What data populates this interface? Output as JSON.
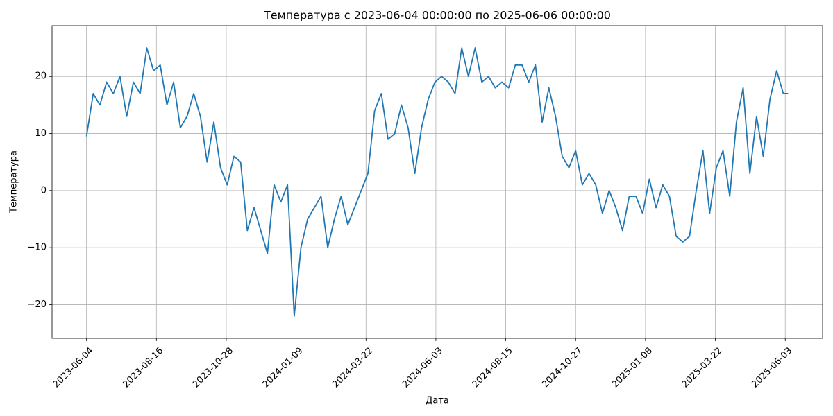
{
  "chart_data": {
    "type": "line",
    "title": "Температура с 2023-06-04 00:00:00 по 2025-06-06 00:00:00",
    "x_label": "Дата",
    "y_label": "Температура",
    "x": [
      "2023-06-04",
      "2023-06-11",
      "2023-06-18",
      "2023-06-25",
      "2023-07-02",
      "2023-07-09",
      "2023-07-16",
      "2023-07-23",
      "2023-07-30",
      "2023-08-06",
      "2023-08-13",
      "2023-08-20",
      "2023-08-27",
      "2023-09-03",
      "2023-09-10",
      "2023-09-17",
      "2023-09-24",
      "2023-10-01",
      "2023-10-08",
      "2023-10-15",
      "2023-10-22",
      "2023-10-29",
      "2023-11-05",
      "2023-11-12",
      "2023-11-19",
      "2023-11-26",
      "2023-12-03",
      "2023-12-10",
      "2023-12-17",
      "2023-12-24",
      "2023-12-31",
      "2024-01-07",
      "2024-01-14",
      "2024-01-21",
      "2024-01-28",
      "2024-02-04",
      "2024-02-11",
      "2024-02-18",
      "2024-02-25",
      "2024-03-03",
      "2024-03-10",
      "2024-03-17",
      "2024-03-24",
      "2024-03-31",
      "2024-04-07",
      "2024-04-14",
      "2024-04-21",
      "2024-04-28",
      "2024-05-05",
      "2024-05-12",
      "2024-05-19",
      "2024-05-26",
      "2024-06-02",
      "2024-06-09",
      "2024-06-16",
      "2024-06-23",
      "2024-06-30",
      "2024-07-07",
      "2024-07-14",
      "2024-07-21",
      "2024-07-28",
      "2024-08-04",
      "2024-08-11",
      "2024-08-18",
      "2024-08-25",
      "2024-09-01",
      "2024-09-08",
      "2024-09-15",
      "2024-09-22",
      "2024-09-29",
      "2024-10-06",
      "2024-10-13",
      "2024-10-20",
      "2024-10-27",
      "2024-11-03",
      "2024-11-10",
      "2024-11-17",
      "2024-11-24",
      "2024-12-01",
      "2024-12-08",
      "2024-12-15",
      "2024-12-22",
      "2024-12-29",
      "2025-01-05",
      "2025-01-12",
      "2025-01-19",
      "2025-01-26",
      "2025-02-02",
      "2025-02-09",
      "2025-02-16",
      "2025-02-23",
      "2025-03-02",
      "2025-03-09",
      "2025-03-16",
      "2025-03-23",
      "2025-03-30",
      "2025-04-06",
      "2025-04-13",
      "2025-04-20",
      "2025-04-27",
      "2025-05-04",
      "2025-05-11",
      "2025-05-18",
      "2025-05-25",
      "2025-06-01",
      "2025-06-06"
    ],
    "values": [
      9.5,
      17,
      15,
      19,
      17,
      20,
      13,
      19,
      17,
      25,
      21,
      22,
      15,
      19,
      11,
      13,
      17,
      13,
      5,
      12,
      4,
      1,
      6,
      5,
      -7,
      -3,
      -7,
      -11,
      1,
      -2,
      1,
      -22,
      -10,
      -5,
      -3,
      -1,
      -10,
      -5,
      -1,
      -6,
      -3,
      0,
      3,
      14,
      17,
      9,
      10,
      15,
      11,
      3,
      11,
      16,
      19,
      20,
      19,
      17,
      25,
      20,
      25,
      19,
      20,
      18,
      19,
      18,
      22,
      22,
      19,
      22,
      12,
      18,
      13,
      6,
      4,
      7,
      1,
      3,
      1,
      -4,
      0,
      -3,
      -7,
      -1,
      -1,
      -4,
      2,
      -3,
      1,
      -1,
      -8,
      -9,
      -8,
      0,
      7,
      -4,
      4,
      7,
      -1,
      12,
      18,
      3,
      13,
      6,
      16,
      21,
      17,
      17
    ],
    "color": "#1f77b4",
    "xlim": [
      "2023-04-29",
      "2025-07-12"
    ],
    "xticks": [
      "2023-06-04",
      "2023-08-16",
      "2023-10-28",
      "2024-01-09",
      "2024-03-22",
      "2024-06-03",
      "2024-08-15",
      "2024-10-27",
      "2025-01-08",
      "2025-03-22",
      "2025-06-03"
    ],
    "ylim": [
      -25.9,
      28.9
    ],
    "yticks": [
      {
        "value": -20,
        "label": "−20"
      },
      {
        "value": -10,
        "label": "−10"
      },
      0,
      10,
      20
    ],
    "grid": true
  }
}
